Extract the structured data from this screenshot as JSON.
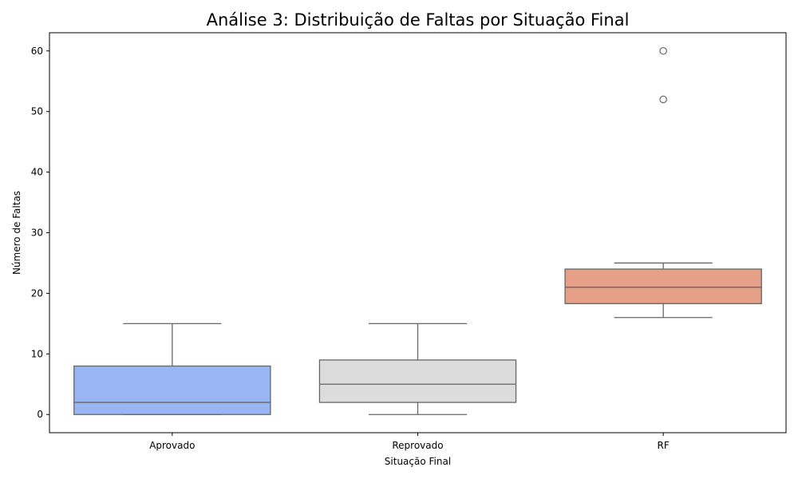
{
  "chart_data": {
    "type": "box",
    "title": "Análise 3: Distribuição de Faltas por Situação Final",
    "xlabel": "Situação Final",
    "ylabel": "Número de Faltas",
    "ylim": [
      -3,
      63
    ],
    "yticks": [
      0,
      10,
      20,
      30,
      40,
      50,
      60
    ],
    "grid": false,
    "categories": [
      "Aprovado",
      "Reprovado",
      "RF"
    ],
    "boxes": [
      {
        "category": "Aprovado",
        "whisker_low": 0,
        "q1": 0,
        "median": 2,
        "q3": 8,
        "whisker_high": 15,
        "outliers": [],
        "color": "#9ab5f4"
      },
      {
        "category": "Reprovado",
        "whisker_low": 0,
        "q1": 2,
        "median": 5,
        "q3": 9,
        "whisker_high": 15,
        "outliers": [],
        "color": "#dcdcdc"
      },
      {
        "category": "RF",
        "whisker_low": 16,
        "q1": 18.3,
        "median": 21,
        "q3": 24,
        "whisker_high": 25,
        "outliers": [
          52,
          60
        ],
        "color": "#e6a088"
      }
    ],
    "line_color": "#666666"
  }
}
